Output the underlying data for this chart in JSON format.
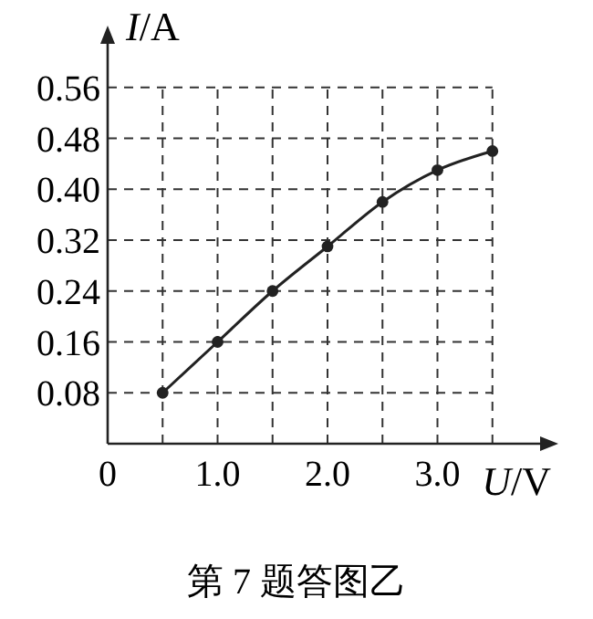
{
  "chart_data": {
    "type": "line",
    "xlabel": "U/V",
    "ylabel": "I/A",
    "annotations": [
      "第 7 题答图乙"
    ],
    "x": [
      0.5,
      1.0,
      1.5,
      2.0,
      2.5,
      3.0,
      3.5
    ],
    "series": [
      {
        "color": "#222222",
        "values": [
          0.08,
          0.16,
          0.24,
          0.31,
          0.38,
          0.43,
          0.46
        ]
      }
    ],
    "xlim": [
      0,
      4.0
    ],
    "ylim": [
      0,
      0.64
    ],
    "xticks": [
      {
        "value": 0,
        "label": "0"
      },
      {
        "value": 0.5,
        "label": null
      },
      {
        "value": 1.0,
        "label": "1.0"
      },
      {
        "value": 1.5,
        "label": null
      },
      {
        "value": 2.0,
        "label": "2.0"
      },
      {
        "value": 2.5,
        "label": null
      },
      {
        "value": 3.0,
        "label": "3.0"
      },
      {
        "value": 3.5,
        "label": null
      }
    ],
    "yticks": [
      0.08,
      0.16,
      0.24,
      0.32,
      {
        "value": 0.4,
        "label": "0.40"
      },
      0.48,
      0.56
    ],
    "grid": true,
    "marker": "circle",
    "line_style": "solid"
  }
}
